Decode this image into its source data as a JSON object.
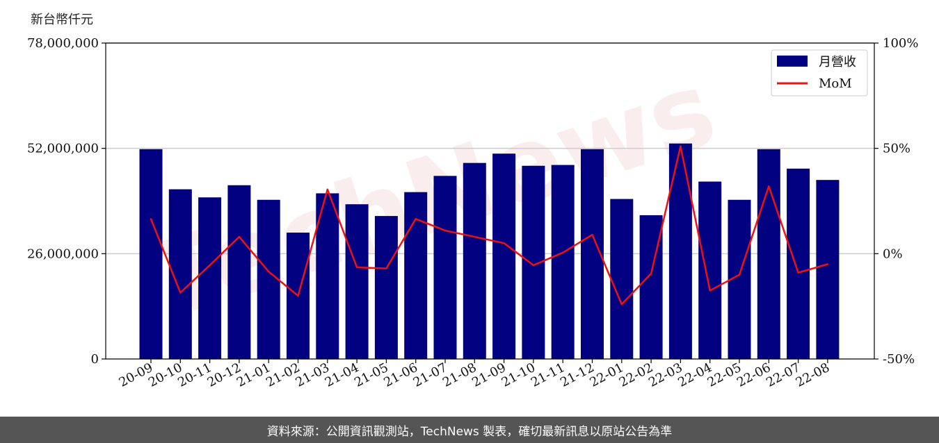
{
  "unit_label": "新台幣仟元",
  "footer_text": "資料來源：公開資訊觀測站，TechNews 製表，確切最新訊息以原站公告為準",
  "watermark_text": "TechNews",
  "colors": {
    "bar": "#000080",
    "line": "#ee1111",
    "grid": "#cccccc",
    "footer_bg": "#555555",
    "watermark": "#e8a0a0"
  },
  "chart_data": {
    "type": "bar",
    "categories": [
      "20-09",
      "20-10",
      "20-11",
      "20-12",
      "21-01",
      "21-02",
      "21-03",
      "21-04",
      "21-05",
      "21-06",
      "21-07",
      "21-08",
      "21-09",
      "21-10",
      "21-11",
      "21-12",
      "22-01",
      "22-02",
      "22-03",
      "22-04",
      "22-05",
      "22-06",
      "22-07",
      "22-08"
    ],
    "series": [
      {
        "name": "月營收",
        "type": "bar",
        "axis": "left",
        "values": [
          51800000,
          41900000,
          39900000,
          42900000,
          39300000,
          31200000,
          40900000,
          38200000,
          35300000,
          41200000,
          45200000,
          48400000,
          50700000,
          47700000,
          47900000,
          51800000,
          39500000,
          35500000,
          53200000,
          43800000,
          39300000,
          51800000,
          47000000,
          44200000
        ]
      },
      {
        "name": "MoM",
        "type": "line",
        "axis": "right",
        "values": [
          16.5,
          -18.5,
          -5.5,
          8,
          -8.5,
          -20,
          30.5,
          -6.5,
          -7,
          16.5,
          11,
          8,
          5,
          -5.5,
          0.5,
          9,
          -24,
          -9.5,
          51,
          -17.5,
          -10,
          32,
          -9,
          -5
        ]
      }
    ],
    "yaxis_left": {
      "ylim": [
        0,
        78000000
      ],
      "ticks": [
        0,
        26000000,
        52000000,
        78000000
      ],
      "tick_labels": [
        "0",
        "26,000,000",
        "52,000,000",
        "78,000,000"
      ]
    },
    "yaxis_right": {
      "ylim": [
        -50,
        100
      ],
      "ticks": [
        -50,
        0,
        50,
        100
      ],
      "tick_labels": [
        "-50%",
        "0%",
        "50%",
        "100%"
      ]
    },
    "grid": true,
    "legend_position": "top-right"
  }
}
